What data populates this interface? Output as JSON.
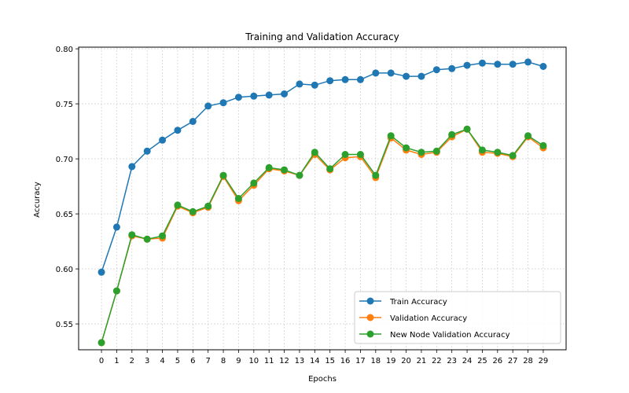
{
  "chart_data": {
    "type": "line",
    "title": "Training and Validation Accuracy",
    "xlabel": "Epochs",
    "ylabel": "Accuracy",
    "x": [
      0,
      1,
      2,
      3,
      4,
      5,
      6,
      7,
      8,
      9,
      10,
      11,
      12,
      13,
      14,
      15,
      16,
      17,
      18,
      19,
      20,
      21,
      22,
      23,
      24,
      25,
      26,
      27,
      28,
      29
    ],
    "xlim": [
      -1.5,
      30.5
    ],
    "ylim": [
      0.5265,
      0.8015
    ],
    "yticks": [
      0.55,
      0.6,
      0.65,
      0.7,
      0.75,
      0.8
    ],
    "ytick_labels": [
      "0.55",
      "0.60",
      "0.65",
      "0.70",
      "0.75",
      "0.80"
    ],
    "grid": true,
    "legend_position": "lower-right",
    "series": [
      {
        "name": "Train Accuracy",
        "color": "#1f77b4",
        "values": [
          0.597,
          0.638,
          0.693,
          0.707,
          0.717,
          0.726,
          0.734,
          0.748,
          0.751,
          0.756,
          0.757,
          0.758,
          0.759,
          0.768,
          0.767,
          0.771,
          0.772,
          0.772,
          0.778,
          0.778,
          0.775,
          0.775,
          0.781,
          0.782,
          0.785,
          0.787,
          0.786,
          0.786,
          0.788,
          0.784
        ]
      },
      {
        "name": "Validation Accuracy",
        "color": "#ff7f0e",
        "values": [
          0.533,
          0.58,
          0.63,
          0.627,
          0.628,
          0.657,
          0.651,
          0.656,
          0.684,
          0.662,
          0.676,
          0.691,
          0.689,
          0.685,
          0.704,
          0.69,
          0.701,
          0.702,
          0.683,
          0.719,
          0.708,
          0.704,
          0.706,
          0.72,
          0.727,
          0.706,
          0.705,
          0.702,
          0.72,
          0.71
        ]
      },
      {
        "name": "New Node Validation Accuracy",
        "color": "#2ca02c",
        "values": [
          0.533,
          0.58,
          0.631,
          0.627,
          0.63,
          0.658,
          0.652,
          0.657,
          0.685,
          0.664,
          0.678,
          0.692,
          0.69,
          0.685,
          0.706,
          0.691,
          0.704,
          0.704,
          0.685,
          0.721,
          0.71,
          0.706,
          0.707,
          0.722,
          0.727,
          0.708,
          0.706,
          0.703,
          0.721,
          0.712
        ]
      }
    ]
  }
}
